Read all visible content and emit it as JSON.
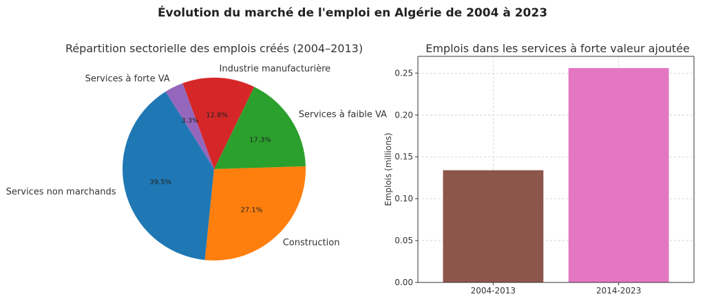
{
  "figure": {
    "title": "Évolution du marché de l'emploi en Algérie de 2004 à 2023"
  },
  "chart_data": [
    {
      "type": "pie",
      "title": "Répartition sectorielle des emplois créés (2004–2013)",
      "slices": [
        {
          "label": "Services non marchands",
          "value": 39.5,
          "pct_label": "39.5%",
          "color": "#1f77b4"
        },
        {
          "label": "Construction",
          "value": 27.1,
          "pct_label": "27.1%",
          "color": "#ff7f0e"
        },
        {
          "label": "Services à faible VA",
          "value": 17.3,
          "pct_label": "17.3%",
          "color": "#2ca02c"
        },
        {
          "label": "Industrie manufacturière",
          "value": 12.8,
          "pct_label": "12.8%",
          "color": "#d62728"
        },
        {
          "label": "Services à forte VA",
          "value": 3.3,
          "pct_label": "3.3%",
          "color": "#9467bd"
        }
      ]
    },
    {
      "type": "bar",
      "title": "Emplois dans les services à forte valeur ajoutée",
      "categories": [
        "2004-2013",
        "2014-2023"
      ],
      "values": [
        0.134,
        0.256
      ],
      "colors": [
        "#8c564b",
        "#e377c2"
      ],
      "ylabel": "Emplois (millions)",
      "xlabel": "",
      "ylim": [
        0,
        0.27
      ],
      "yticks": [
        0.0,
        0.05,
        0.1,
        0.15,
        0.2,
        0.25
      ],
      "ytick_labels": [
        "0.00",
        "0.05",
        "0.10",
        "0.15",
        "0.20",
        "0.25"
      ],
      "grid": true
    }
  ]
}
